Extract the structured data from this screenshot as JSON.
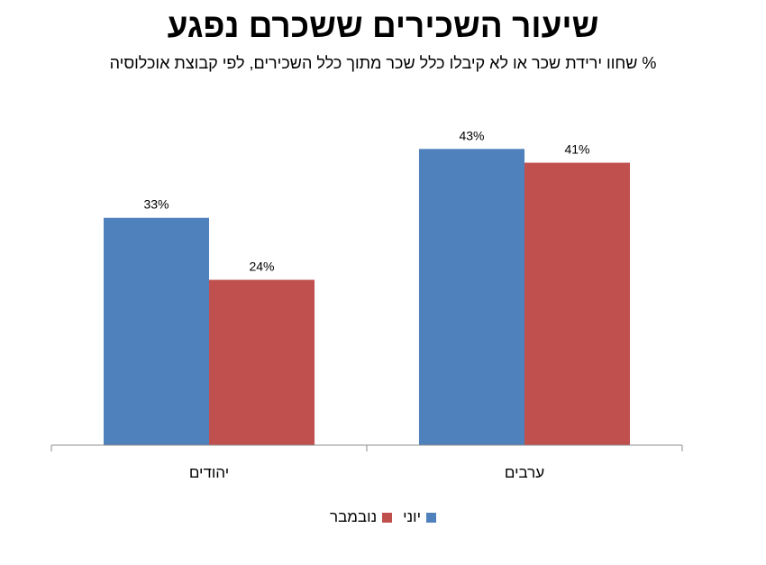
{
  "chart_data": {
    "type": "bar",
    "title": "שיעור השכירים ששכרם נפגע",
    "subtitle": "% שחוו ירידת שכר או לא קיבלו כלל שכר מתוך כלל השכירים, לפי קבוצת אוכלוסיה",
    "categories": [
      "ערבים",
      "יהודים"
    ],
    "series": [
      {
        "name": "יוני",
        "color": "#4F81BD",
        "values": [
          43,
          33
        ],
        "labels": [
          "43%",
          "33%"
        ]
      },
      {
        "name": "נובמבר",
        "color": "#C0504D",
        "values": [
          41,
          24
        ],
        "labels": [
          "41%",
          "24%"
        ]
      }
    ],
    "xlabel": "",
    "ylabel": "",
    "ylim": [
      0,
      45
    ],
    "grid": false,
    "legend": "bottom"
  }
}
